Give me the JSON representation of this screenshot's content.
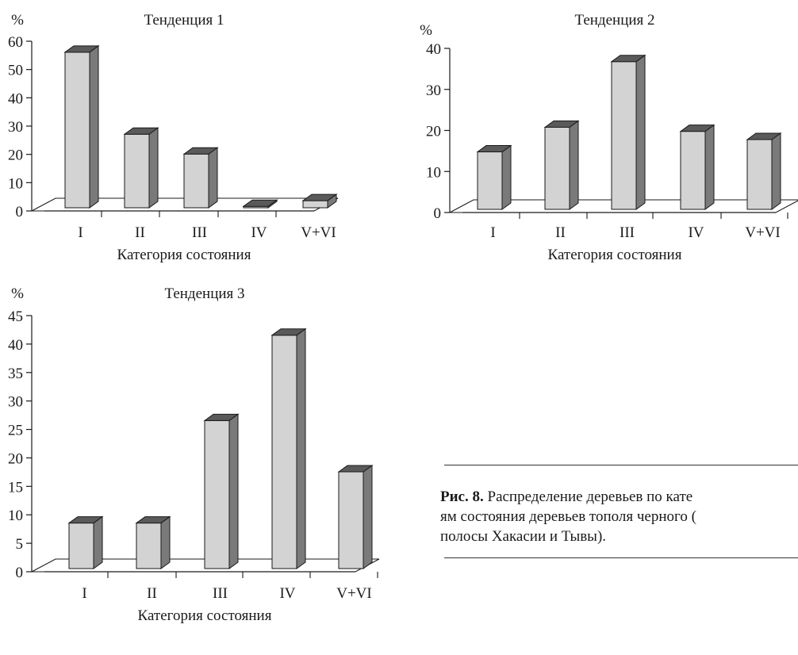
{
  "chart_data": [
    {
      "type": "bar",
      "title": "Тенденция 1",
      "ylabel": "%",
      "xlabel": "Категория состояния",
      "categories": [
        "I",
        "II",
        "III",
        "IV",
        "V+VI"
      ],
      "values": [
        55,
        26,
        19,
        0.5,
        2.5
      ],
      "ylim": [
        0,
        60
      ],
      "yticks": [
        0,
        10,
        20,
        30,
        40,
        50,
        60
      ],
      "grid": false,
      "style": "3d-bar"
    },
    {
      "type": "bar",
      "title": "Тенденция 2",
      "ylabel": "%",
      "xlabel": "Категория состояния",
      "categories": [
        "I",
        "II",
        "III",
        "IV",
        "V+VI"
      ],
      "values": [
        14,
        20,
        36,
        19,
        17
      ],
      "ylim": [
        0,
        40
      ],
      "yticks": [
        0,
        10,
        20,
        30,
        40
      ],
      "grid": false,
      "style": "3d-bar"
    },
    {
      "type": "bar",
      "title": "Тенденция 3",
      "ylabel": "%",
      "xlabel": "Категория состояния",
      "categories": [
        "I",
        "II",
        "III",
        "IV",
        "V+VI"
      ],
      "values": [
        8,
        8,
        26,
        41,
        17
      ],
      "ylim": [
        0,
        45
      ],
      "yticks": [
        0,
        5,
        10,
        15,
        20,
        25,
        30,
        35,
        40,
        45
      ],
      "grid": false,
      "style": "3d-bar"
    }
  ],
  "colors": {
    "bar_front": "#d3d3d3",
    "bar_side": "#7a7a7a",
    "bar_top": "#5a5a5a",
    "ink": "#1a1a1a"
  },
  "caption": {
    "label": "Рис. 8.",
    "line1": " Распределение деревьев по кате",
    "line2": "ям состояния деревьев тополя черного (",
    "line3": "полосы Хакасии и Тывы)."
  }
}
